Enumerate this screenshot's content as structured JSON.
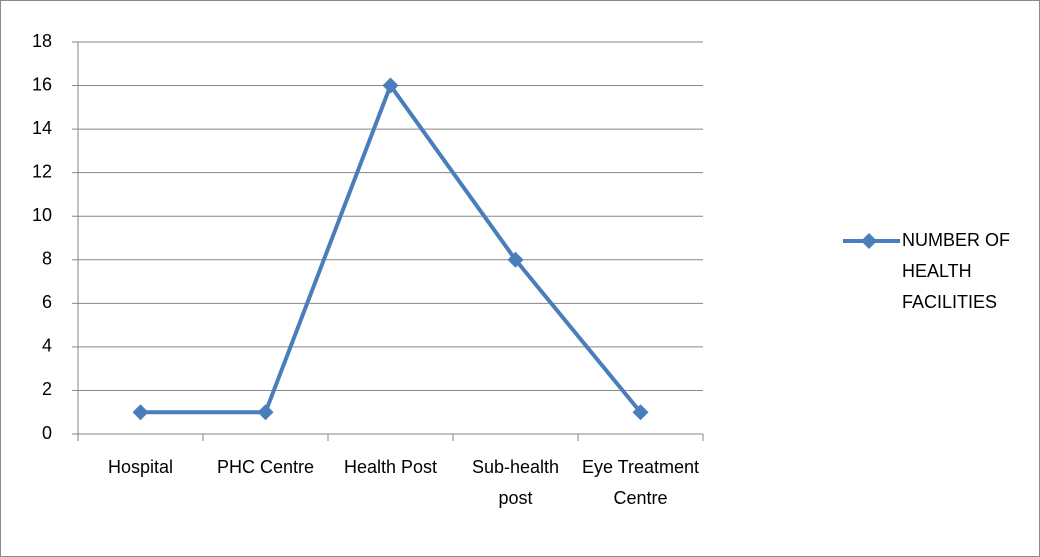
{
  "chart_data": {
    "type": "line",
    "categories": [
      "Hospital",
      "PHC Centre",
      "Health Post",
      "Sub-health post",
      "Eye Treatment Centre"
    ],
    "series": [
      {
        "name": "NUMBER OF HEALTH FACILITIES",
        "color": "#4a7ebb",
        "values": [
          1,
          1,
          16,
          8,
          1
        ]
      }
    ],
    "ylim": [
      0,
      18
    ],
    "yticks": [
      0,
      2,
      4,
      6,
      8,
      10,
      12,
      14,
      16,
      18
    ],
    "grid": true,
    "legend": "right"
  }
}
